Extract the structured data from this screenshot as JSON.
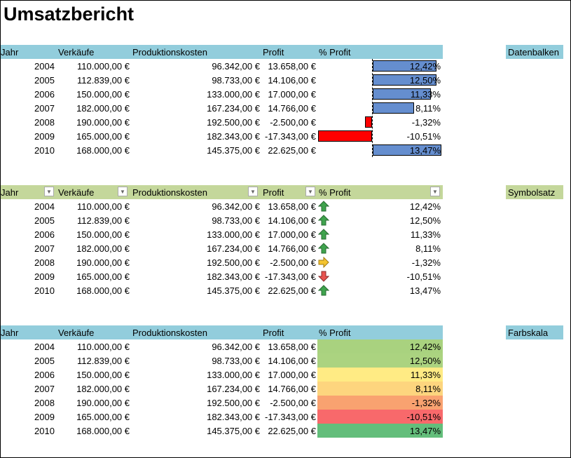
{
  "title": "Umsatzbericht",
  "headers": [
    "Jahr",
    "Verkäufe",
    "Produktionskosten",
    "Profit",
    "% Profit"
  ],
  "rows": [
    [
      "2004",
      "110.000,00 €",
      "96.342,00 €",
      "13.658,00 €",
      "12,42%"
    ],
    [
      "2005",
      "112.839,00 €",
      "98.733,00 €",
      "14.106,00 €",
      "12,50%"
    ],
    [
      "2006",
      "150.000,00 €",
      "133.000,00 €",
      "17.000,00 €",
      "11,33%"
    ],
    [
      "2007",
      "182.000,00 €",
      "167.234,00 €",
      "14.766,00 €",
      "8,11%"
    ],
    [
      "2008",
      "190.000,00 €",
      "192.500,00 €",
      "-2.500,00 €",
      "-1,32%"
    ],
    [
      "2009",
      "165.000,00 €",
      "182.343,00 €",
      "-17.343,00 €",
      "-10,51%"
    ],
    [
      "2010",
      "168.000,00 €",
      "145.375,00 €",
      "22.625,00 €",
      "13,47%"
    ]
  ],
  "profit_pct": [
    12.42,
    12.5,
    11.33,
    8.11,
    -1.32,
    -10.51,
    13.47
  ],
  "sections": [
    {
      "label": "Datenbalken",
      "header_color": "#92CDDC",
      "type": "databar"
    },
    {
      "label": "Symbolsatz",
      "header_color": "#C4D79B",
      "type": "iconset",
      "icons": [
        "arrow-up-icon",
        "arrow-up-icon",
        "arrow-up-icon",
        "arrow-up-icon",
        "arrow-right-icon",
        "arrow-down-icon",
        "arrow-up-icon"
      ]
    },
    {
      "label": "Farbskala",
      "header_color": "#92CDDC",
      "type": "colorscale",
      "colors": [
        "#A9D27F",
        "#ABD380",
        "#FFEB84",
        "#FDD57E",
        "#F9A270",
        "#F8696B",
        "#63BE7B"
      ]
    }
  ],
  "colors": {
    "bar_positive": "#658ECF",
    "bar_negative": "#FF0000",
    "up": "#3FA34D",
    "right": "#F4C430",
    "down": "#E8534F"
  }
}
